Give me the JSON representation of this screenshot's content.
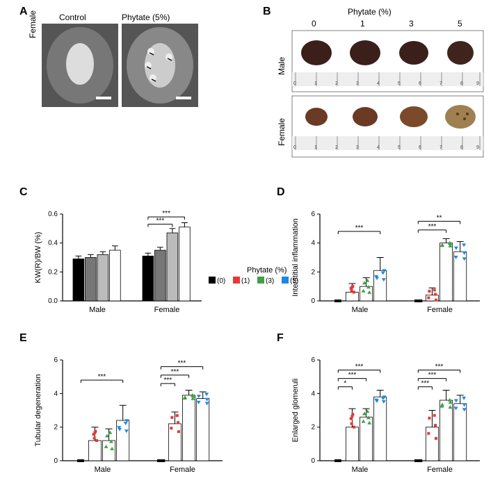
{
  "panels": {
    "A": {
      "label": "A"
    },
    "B": {
      "label": "B"
    },
    "C": {
      "label": "C"
    },
    "D": {
      "label": "D"
    },
    "E": {
      "label": "E"
    },
    "F": {
      "label": "F"
    }
  },
  "panelA": {
    "row_label": "Female",
    "col1": "Control",
    "col2": "Phytate (5%)",
    "bg": "#6e6e6e",
    "scale_bar_color": "#ffffff"
  },
  "panelB": {
    "title": "Phytate (%)",
    "cols": [
      "0",
      "1",
      "3",
      "5"
    ],
    "rows": [
      "Male",
      "Female"
    ],
    "male_color": "#3a1f1a",
    "female_color": "#7a4a2a",
    "bg": "#ffffff",
    "ruler_bg": "#e8e8e8"
  },
  "legend": {
    "title": "Phytate (%)",
    "items": [
      {
        "label": "(0)",
        "color": "#000000"
      },
      {
        "label": "(1)",
        "color": "#e53935"
      },
      {
        "label": "(3)",
        "color": "#43a047"
      },
      {
        "label": "(5)",
        "color": "#1e88e5"
      }
    ]
  },
  "chartC": {
    "type": "bar",
    "ylabel": "KW(R)/BW (%)",
    "ylim": [
      0,
      0.6
    ],
    "ytick_step": 0.2,
    "categories": [
      "Male",
      "Female"
    ],
    "series_colors": [
      "#000000",
      "#777777",
      "#bbbbbb",
      "#ffffff"
    ],
    "border": "#000000",
    "values": {
      "Male": [
        0.29,
        0.3,
        0.32,
        0.35
      ],
      "Female": [
        0.31,
        0.35,
        0.47,
        0.51
      ]
    },
    "errors": {
      "Male": [
        0.02,
        0.02,
        0.02,
        0.03
      ],
      "Female": [
        0.02,
        0.02,
        0.03,
        0.03
      ]
    },
    "sig": [
      {
        "group": "Female",
        "from": 0,
        "to": 2,
        "label": "***",
        "y": 0.53
      },
      {
        "group": "Female",
        "from": 0,
        "to": 3,
        "label": "***",
        "y": 0.58
      }
    ]
  },
  "chartD": {
    "type": "bar_scatter",
    "ylabel": "Interstitial inflammation",
    "ylim": [
      0,
      6
    ],
    "ytick_step": 2,
    "categories": [
      "Male",
      "Female"
    ],
    "values": {
      "Male": [
        0,
        0.6,
        1.0,
        2.1
      ],
      "Female": [
        0,
        0.4,
        4.0,
        3.4
      ]
    },
    "errors": {
      "Male": [
        0,
        0.6,
        0.6,
        0.9
      ],
      "Female": [
        0,
        0.5,
        0.3,
        0.7
      ]
    },
    "point_colors": [
      "#000000",
      "#e53935",
      "#43a047",
      "#1e88e5"
    ],
    "sig": [
      {
        "group": "Male",
        "from": 0,
        "to": 3,
        "label": "***",
        "y": 4.8
      },
      {
        "group": "Female",
        "from": 0,
        "to": 2,
        "label": "***",
        "y": 4.9
      },
      {
        "group": "Female",
        "from": 0,
        "to": 3,
        "label": "**",
        "y": 5.5
      }
    ]
  },
  "chartE": {
    "type": "bar_scatter",
    "ylabel": "Tubular degeneration",
    "ylim": [
      0,
      6
    ],
    "ytick_step": 2,
    "categories": [
      "Male",
      "Female"
    ],
    "values": {
      "Male": [
        0,
        1.2,
        1.2,
        2.4
      ],
      "Female": [
        0,
        2.2,
        3.9,
        3.7
      ]
    },
    "errors": {
      "Male": [
        0,
        0.8,
        0.7,
        0.9
      ],
      "Female": [
        0,
        0.7,
        0.3,
        0.4
      ]
    },
    "point_colors": [
      "#000000",
      "#e53935",
      "#43a047",
      "#1e88e5"
    ],
    "sig": [
      {
        "group": "Male",
        "from": 0,
        "to": 3,
        "label": "***",
        "y": 4.8
      },
      {
        "group": "Female",
        "from": 0,
        "to": 1,
        "label": "***",
        "y": 4.6
      },
      {
        "group": "Female",
        "from": 0,
        "to": 2,
        "label": "***",
        "y": 5.1
      },
      {
        "group": "Female",
        "from": 0,
        "to": 3,
        "label": "***",
        "y": 5.6
      }
    ]
  },
  "chartF": {
    "type": "bar_scatter",
    "ylabel": "Enlarged glomeruli",
    "ylim": [
      0,
      6
    ],
    "ytick_step": 2,
    "categories": [
      "Male",
      "Female"
    ],
    "values": {
      "Male": [
        0,
        2.0,
        2.6,
        3.8
      ],
      "Female": [
        0,
        2.0,
        3.6,
        3.4
      ]
    },
    "errors": {
      "Male": [
        0,
        1.1,
        0.5,
        0.4
      ],
      "Female": [
        0,
        1.0,
        0.6,
        0.5
      ]
    },
    "point_colors": [
      "#000000",
      "#e53935",
      "#43a047",
      "#1e88e5"
    ],
    "sig": [
      {
        "group": "Male",
        "from": 0,
        "to": 1,
        "label": "*",
        "y": 4.4
      },
      {
        "group": "Male",
        "from": 0,
        "to": 2,
        "label": "***",
        "y": 4.9
      },
      {
        "group": "Male",
        "from": 0,
        "to": 3,
        "label": "***",
        "y": 5.4
      },
      {
        "group": "Female",
        "from": 0,
        "to": 1,
        "label": "***",
        "y": 4.4
      },
      {
        "group": "Female",
        "from": 0,
        "to": 2,
        "label": "***",
        "y": 4.9
      },
      {
        "group": "Female",
        "from": 0,
        "to": 3,
        "label": "***",
        "y": 5.4
      }
    ]
  },
  "axis_color": "#000000",
  "bar_border": "#000000",
  "bar_fill": "#ffffff",
  "plot_bg": "#ffffff"
}
